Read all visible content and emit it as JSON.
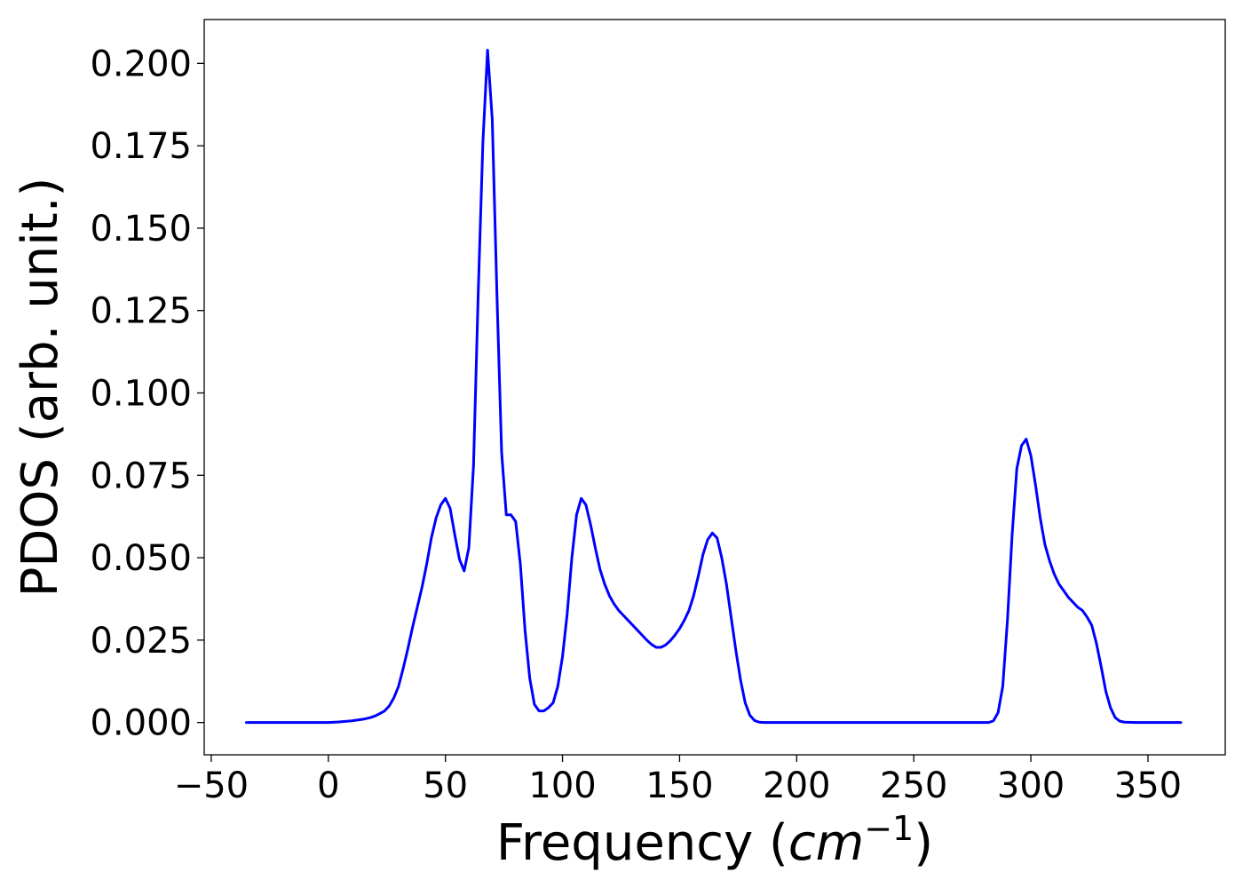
{
  "chart_data": {
    "type": "line",
    "title": "",
    "xlabel_main": "Frequency (",
    "xlabel_unit": "cm",
    "xlabel_exp": "−1",
    "xlabel_close": ")",
    "ylabel": "PDOS (arb. unit.)",
    "xlim": [
      -53,
      383
    ],
    "ylim": [
      -0.0098,
      0.2133
    ],
    "x_ticks": [
      -50,
      0,
      50,
      100,
      150,
      200,
      250,
      300,
      350
    ],
    "x_tick_labels": [
      "−50",
      "0",
      "50",
      "100",
      "150",
      "200",
      "250",
      "300",
      "350"
    ],
    "y_ticks": [
      0.0,
      0.025,
      0.05,
      0.075,
      0.1,
      0.125,
      0.15,
      0.175,
      0.2
    ],
    "y_tick_labels": [
      "0.000",
      "0.025",
      "0.050",
      "0.075",
      "0.100",
      "0.125",
      "0.150",
      "0.175",
      "0.200"
    ],
    "grid": false,
    "line_color": "#0000ff",
    "series": [
      {
        "x": [
          -35,
          0,
          5,
          10,
          15,
          18,
          20,
          22,
          24,
          26,
          28,
          30,
          32,
          34,
          36,
          38,
          40,
          42,
          44,
          46,
          48,
          50,
          52,
          54,
          56,
          58,
          60,
          62,
          64,
          66,
          68,
          70,
          72,
          74,
          76,
          78,
          80,
          82,
          84,
          86,
          88,
          90,
          92,
          94,
          96,
          98,
          100,
          102,
          104,
          106,
          108,
          110,
          112,
          114,
          116,
          118,
          120,
          122,
          124,
          126,
          128,
          130,
          132,
          134,
          136,
          138,
          140,
          142,
          144,
          146,
          148,
          150,
          152,
          154,
          156,
          158,
          160,
          162,
          164,
          166,
          168,
          170,
          172,
          174,
          176,
          178,
          180,
          182,
          184,
          186,
          190,
          200,
          250,
          270,
          282,
          284,
          286,
          288,
          290,
          292,
          294,
          296,
          298,
          300,
          302,
          304,
          306,
          308,
          310,
          312,
          314,
          316,
          318,
          320,
          322,
          324,
          326,
          328,
          330,
          332,
          334,
          336,
          338,
          340,
          345,
          364
        ],
        "y": [
          0.0,
          0.0,
          0.0002,
          0.0005,
          0.001,
          0.0015,
          0.002,
          0.0027,
          0.0035,
          0.005,
          0.0075,
          0.011,
          0.0165,
          0.0225,
          0.029,
          0.035,
          0.041,
          0.048,
          0.056,
          0.062,
          0.066,
          0.068,
          0.065,
          0.057,
          0.0495,
          0.046,
          0.053,
          0.078,
          0.13,
          0.176,
          0.204,
          0.183,
          0.13,
          0.082,
          0.063,
          0.063,
          0.061,
          0.048,
          0.028,
          0.0135,
          0.0055,
          0.0035,
          0.0035,
          0.0045,
          0.006,
          0.011,
          0.02,
          0.033,
          0.05,
          0.063,
          0.068,
          0.066,
          0.06,
          0.053,
          0.0465,
          0.042,
          0.0385,
          0.036,
          0.034,
          0.0325,
          0.031,
          0.0295,
          0.028,
          0.0265,
          0.025,
          0.0237,
          0.0228,
          0.0228,
          0.0235,
          0.0248,
          0.0265,
          0.0285,
          0.031,
          0.034,
          0.0385,
          0.0445,
          0.051,
          0.0555,
          0.0575,
          0.056,
          0.05,
          0.042,
          0.032,
          0.022,
          0.013,
          0.006,
          0.0022,
          0.0006,
          0.0001,
          0.0,
          0.0,
          0.0,
          0.0,
          0.0,
          0.0,
          0.0005,
          0.003,
          0.011,
          0.031,
          0.057,
          0.077,
          0.084,
          0.086,
          0.081,
          0.072,
          0.062,
          0.054,
          0.049,
          0.045,
          0.042,
          0.04,
          0.038,
          0.0365,
          0.035,
          0.034,
          0.032,
          0.0295,
          0.024,
          0.017,
          0.0095,
          0.0045,
          0.0015,
          0.0004,
          0.0001,
          0.0,
          0.0
        ]
      }
    ]
  }
}
